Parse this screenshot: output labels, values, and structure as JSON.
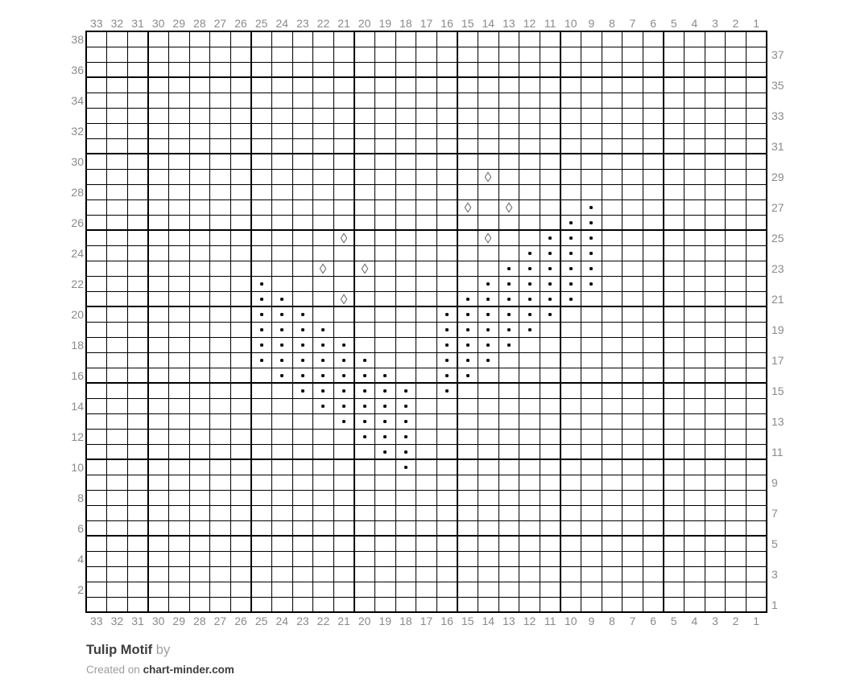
{
  "page": {
    "title": "Tulip Motif",
    "byline": "by",
    "credit_prefix": "Created on",
    "credit_site": "chart-minder.com"
  },
  "chart_data": {
    "type": "table",
    "subtype": "knitting-stitch-chart",
    "columns": 33,
    "rows": 38,
    "major_grid_every": 5,
    "grid_on": true,
    "column_labels_top": [
      "33",
      "32",
      "31",
      "30",
      "29",
      "28",
      "27",
      "26",
      "25",
      "24",
      "23",
      "22",
      "21",
      "20",
      "19",
      "18",
      "17",
      "16",
      "15",
      "14",
      "13",
      "12",
      "11",
      "10",
      "9",
      "8",
      "7",
      "6",
      "5",
      "4",
      "3",
      "2",
      "1"
    ],
    "column_labels_bottom": [
      "33",
      "32",
      "31",
      "30",
      "29",
      "28",
      "27",
      "26",
      "25",
      "24",
      "23",
      "22",
      "21",
      "20",
      "19",
      "18",
      "17",
      "16",
      "15",
      "14",
      "13",
      "12",
      "11",
      "10",
      "9",
      "8",
      "7",
      "6",
      "5",
      "4",
      "3",
      "2",
      "1"
    ],
    "row_labels_left": [
      "38",
      "36",
      "34",
      "32",
      "30",
      "28",
      "26",
      "24",
      "22",
      "20",
      "18",
      "16",
      "14",
      "12",
      "10",
      "8",
      "6",
      "4",
      "2"
    ],
    "row_labels_right": [
      "37",
      "35",
      "33",
      "31",
      "29",
      "27",
      "25",
      "23",
      "21",
      "19",
      "17",
      "15",
      "13",
      "11",
      "9",
      "7",
      "5",
      "3",
      "1"
    ],
    "symbols": {
      "dot": [
        {
          "row": 27,
          "cols": [
            9
          ]
        },
        {
          "row": 26,
          "cols": [
            10,
            9
          ]
        },
        {
          "row": 25,
          "cols": [
            11,
            10,
            9
          ]
        },
        {
          "row": 24,
          "cols": [
            12,
            11,
            10,
            9
          ]
        },
        {
          "row": 23,
          "cols": [
            13,
            12,
            11,
            10,
            9
          ]
        },
        {
          "row": 22,
          "cols": [
            25,
            14,
            13,
            12,
            11,
            10,
            9
          ]
        },
        {
          "row": 21,
          "cols": [
            25,
            24,
            15,
            14,
            13,
            12,
            11,
            10
          ]
        },
        {
          "row": 20,
          "cols": [
            25,
            24,
            23,
            16,
            15,
            14,
            13,
            12,
            11
          ]
        },
        {
          "row": 19,
          "cols": [
            25,
            24,
            23,
            22,
            16,
            15,
            14,
            13,
            12
          ]
        },
        {
          "row": 18,
          "cols": [
            25,
            24,
            23,
            22,
            21,
            16,
            15,
            14,
            13
          ]
        },
        {
          "row": 17,
          "cols": [
            25,
            24,
            23,
            22,
            21,
            20,
            16,
            15,
            14
          ]
        },
        {
          "row": 16,
          "cols": [
            24,
            23,
            22,
            21,
            20,
            19,
            16,
            15
          ]
        },
        {
          "row": 15,
          "cols": [
            23,
            22,
            21,
            20,
            19,
            18,
            16
          ]
        },
        {
          "row": 14,
          "cols": [
            22,
            21,
            20,
            19,
            18
          ]
        },
        {
          "row": 13,
          "cols": [
            21,
            20,
            19,
            18
          ]
        },
        {
          "row": 12,
          "cols": [
            20,
            19,
            18
          ]
        },
        {
          "row": 11,
          "cols": [
            19,
            18
          ]
        },
        {
          "row": 10,
          "cols": [
            18
          ]
        }
      ],
      "diamond": [
        {
          "row": 29,
          "cols": [
            14
          ]
        },
        {
          "row": 27,
          "cols": [
            15,
            13
          ]
        },
        {
          "row": 25,
          "cols": [
            21,
            14
          ]
        },
        {
          "row": 23,
          "cols": [
            22,
            20
          ]
        },
        {
          "row": 21,
          "cols": [
            21
          ]
        }
      ]
    },
    "colors": {
      "grid_line": "#000000",
      "axis_label": "#8a8a8a",
      "dot_symbol": "#111111",
      "diamond_symbol": "#666666",
      "title_text": "#3d3d3d",
      "muted_text": "#9e9e9e"
    }
  }
}
